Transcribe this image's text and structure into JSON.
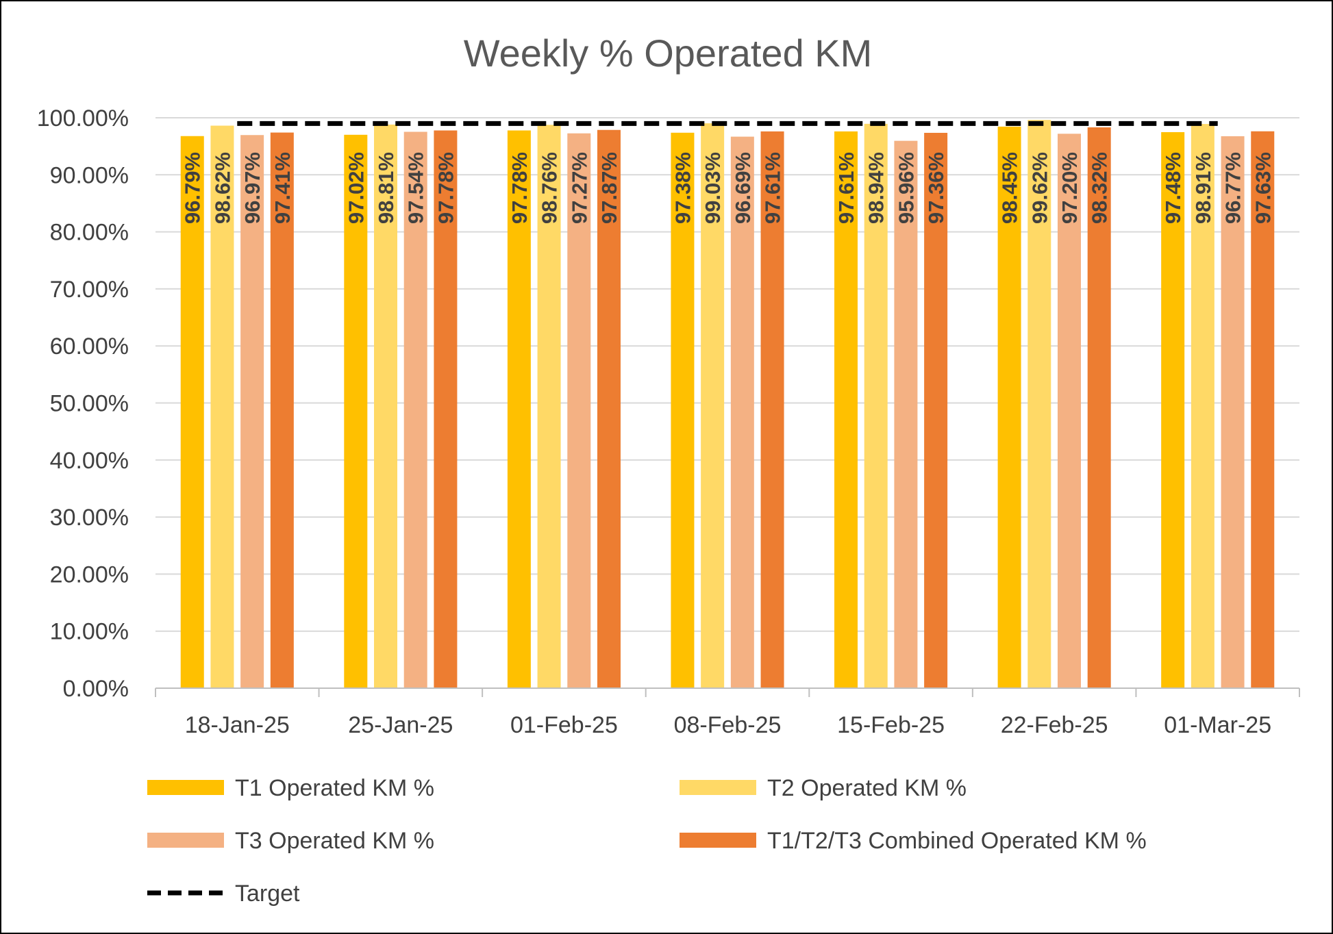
{
  "chart_data": {
    "type": "bar",
    "title": "Weekly % Operated KM",
    "xlabel": "",
    "ylabel": "",
    "ylim": [
      0,
      100
    ],
    "yticks": [
      "0.00%",
      "10.00%",
      "20.00%",
      "30.00%",
      "40.00%",
      "50.00%",
      "60.00%",
      "70.00%",
      "80.00%",
      "90.00%",
      "100.00%"
    ],
    "categories": [
      "18-Jan-25",
      "25-Jan-25",
      "01-Feb-25",
      "08-Feb-25",
      "15-Feb-25",
      "22-Feb-25",
      "01-Mar-25"
    ],
    "series": [
      {
        "name": "T1 Operated KM %",
        "color": "#FFC000",
        "values": [
          96.79,
          97.02,
          97.78,
          97.38,
          97.61,
          98.45,
          97.48
        ],
        "labels": [
          "96.79%",
          "97.02%",
          "97.78%",
          "97.38%",
          "97.61%",
          "98.45%",
          "97.48%"
        ]
      },
      {
        "name": "T2 Operated KM %",
        "color": "#FFD966",
        "values": [
          98.62,
          98.81,
          98.76,
          99.03,
          98.94,
          99.62,
          98.91
        ],
        "labels": [
          "98.62%",
          "98.81%",
          "98.76%",
          "99.03%",
          "98.94%",
          "99.62%",
          "98.91%"
        ]
      },
      {
        "name": "T3 Operated KM %",
        "color": "#F4B183",
        "values": [
          96.97,
          97.54,
          97.27,
          96.69,
          95.96,
          97.2,
          96.77
        ],
        "labels": [
          "96.97%",
          "97.54%",
          "97.27%",
          "96.69%",
          "95.96%",
          "97.20%",
          "96.77%"
        ]
      },
      {
        "name": "T1/T2/T3 Combined Operated KM %",
        "color": "#ED7D31",
        "values": [
          97.41,
          97.78,
          97.87,
          97.61,
          97.36,
          98.32,
          97.63
        ],
        "labels": [
          "97.41%",
          "97.78%",
          "97.87%",
          "97.61%",
          "97.36%",
          "98.32%",
          "97.63%"
        ]
      }
    ],
    "target": {
      "name": "Target",
      "value": 99,
      "color": "#000000",
      "style": "dashed"
    },
    "grid": true,
    "legend": "bottom"
  }
}
